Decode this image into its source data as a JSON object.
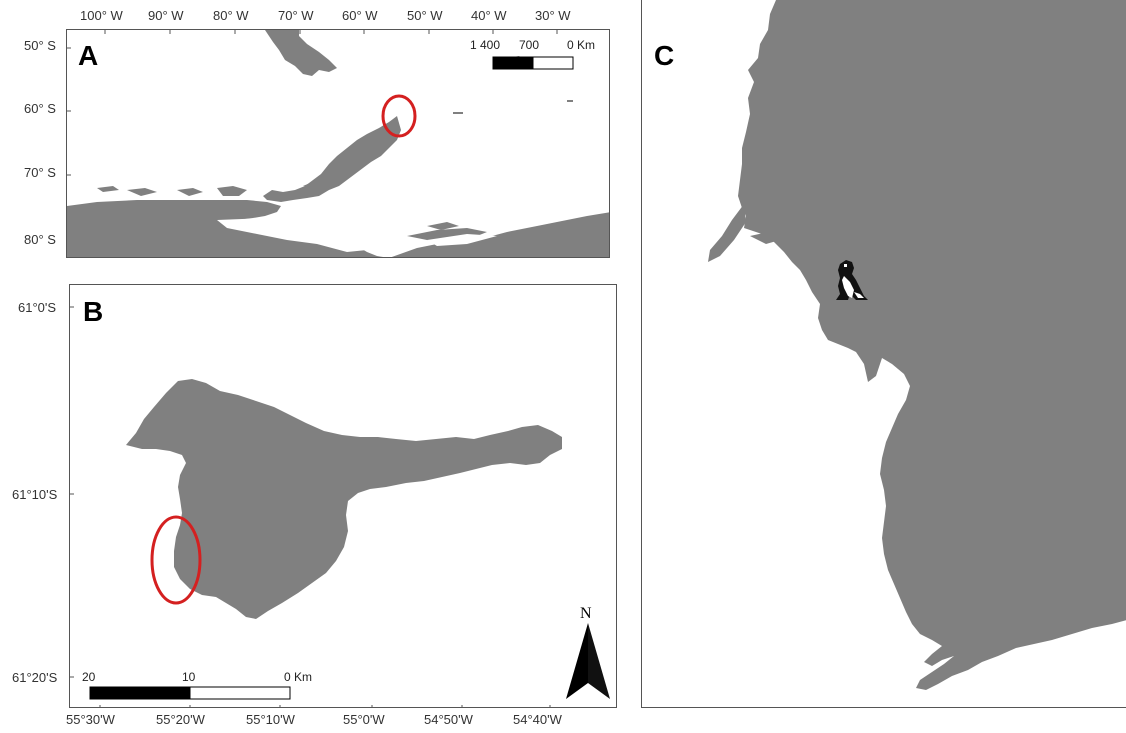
{
  "colors": {
    "land": "#808080",
    "highlight": "#d42020",
    "frame": "#555555"
  },
  "panel_a": {
    "letter": "A",
    "lon_labels": [
      "100° W",
      "90° W",
      "80° W",
      "70° W",
      "60° W",
      "50° W",
      "40° W",
      "30° W"
    ],
    "lat_labels": [
      "50° S",
      "60° S",
      "70° S",
      "80° S"
    ],
    "scalebar": {
      "labels": [
        "1 400",
        "700",
        "0 Km"
      ]
    }
  },
  "panel_b": {
    "letter": "B",
    "lat_labels": [
      "61°0'S",
      "61°10'S",
      "61°20'S"
    ],
    "lon_labels": [
      "55°30'W",
      "55°20'W",
      "55°10'W",
      "55°0'W",
      "54°50'W",
      "54°40'W"
    ],
    "scalebar": {
      "labels": [
        "20",
        "10",
        "0 Km"
      ]
    },
    "north_label": "N"
  },
  "panel_c": {
    "letter": "C",
    "marker_icon": "penguin-icon"
  }
}
